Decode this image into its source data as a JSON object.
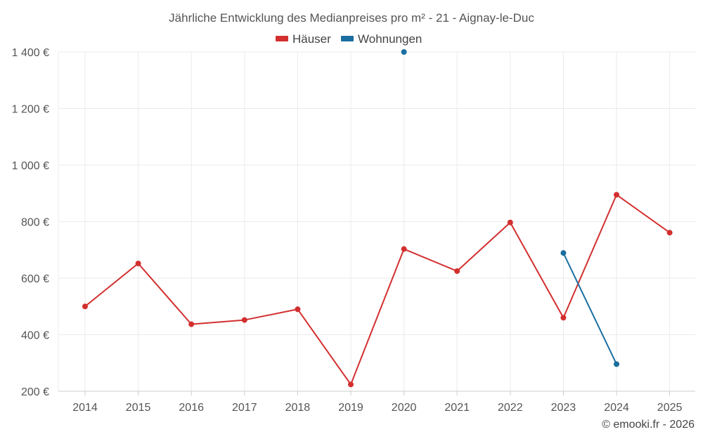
{
  "chart_data": {
    "type": "line",
    "title": "Jährliche Entwicklung des Medianpreises pro m² - 21 - Aignay-le-Duc",
    "xlabel": "",
    "ylabel": "",
    "categories": [
      "2014",
      "2015",
      "2016",
      "2017",
      "2018",
      "2019",
      "2020",
      "2021",
      "2022",
      "2023",
      "2024",
      "2025"
    ],
    "ylim": [
      200,
      1400
    ],
    "yticks": [
      200,
      400,
      600,
      800,
      1000,
      1200,
      1400
    ],
    "ytick_labels": [
      "200 €",
      "400 €",
      "600 €",
      "800 €",
      "1 000 €",
      "1 200 €",
      "1 400 €"
    ],
    "grid": true,
    "legend_position": "top-center",
    "series": [
      {
        "name": "Häuser",
        "color": "#d32f2f",
        "values": [
          500,
          652,
          437,
          452,
          490,
          224,
          703,
          625,
          797,
          460,
          895,
          761
        ]
      },
      {
        "name": "Wohnungen",
        "color": "#1a6ea0",
        "values": [
          null,
          null,
          null,
          null,
          null,
          null,
          1400,
          null,
          null,
          689,
          296,
          null
        ]
      }
    ],
    "credit": "© emooki.fr - 2026"
  }
}
